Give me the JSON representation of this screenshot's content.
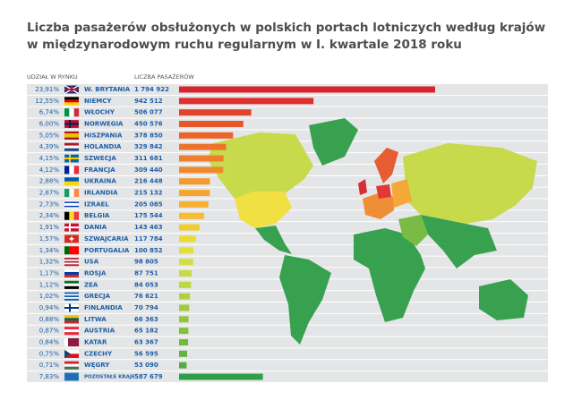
{
  "chart_data": {
    "type": "bar",
    "title": "Liczba pasażerów obsłużonych w polskich portach lotniczych według krajów",
    "subtitle": "w międzynarodowym ruchu regularnym w I. kwartale 2018 roku",
    "share_header": "UDZIAŁ W RYNKU",
    "value_header": "LICZBA PASAŻERÓW",
    "categories": [
      "W. BRYTANIA",
      "NIEMCY",
      "WŁOCHY",
      "NORWEGIA",
      "HISZPANIA",
      "HOLANDIA",
      "SZWECJA",
      "FRANCJA",
      "UKRAINA",
      "IRLANDIA",
      "IZRAEL",
      "BELGIA",
      "DANIA",
      "SZWAJCARIA",
      "PORTUGALIA",
      "USA",
      "ROSJA",
      "ZEA",
      "GRECJA",
      "FINLANDIA",
      "LITWA",
      "AUSTRIA",
      "KATAR",
      "CZECHY",
      "WĘGRY",
      "POZOSTAŁE KRAJE"
    ],
    "values": [
      1794922,
      942512,
      506077,
      450576,
      378850,
      329842,
      311681,
      309440,
      216448,
      215132,
      205085,
      175544,
      143463,
      117784,
      100852,
      98805,
      87751,
      84053,
      76621,
      70794,
      66363,
      65182,
      63367,
      56595,
      53090,
      587679
    ],
    "value_labels": [
      "1 794 922",
      "942 512",
      "506 077",
      "450 576",
      "378 850",
      "329 842",
      "311 681",
      "309 440",
      "216 448",
      "215 132",
      "205 085",
      "175 544",
      "143 463",
      "117 784",
      "100 852",
      "98 805",
      "87 751",
      "84 053",
      "76 621",
      "70 794",
      "66 363",
      "65 182",
      "63 367",
      "56 595",
      "53 090",
      "587 679"
    ],
    "shares": {
      "values": [
        23.91,
        12.55,
        6.74,
        6.0,
        5.05,
        4.39,
        4.15,
        4.12,
        2.88,
        2.87,
        2.73,
        2.34,
        1.91,
        1.57,
        1.34,
        1.32,
        1.17,
        1.12,
        1.02,
        0.94,
        0.88,
        0.87,
        0.84,
        0.75,
        0.71,
        7.83
      ],
      "value_labels": [
        "23,91%",
        "12,55%",
        "6,74%",
        "6,00%",
        "5,05%",
        "4,39%",
        "4,15%",
        "4,12%",
        "2,88%",
        "2,87%",
        "2,73%",
        "2,34%",
        "1,91%",
        "1,57%",
        "1,34%",
        "1,32%",
        "1,17%",
        "1,12%",
        "1,02%",
        "0,94%",
        "0,88%",
        "0,87%",
        "0,84%",
        "0,75%",
        "0,71%",
        "7,83%"
      ]
    },
    "colors": [
      "#d6262d",
      "#df302d",
      "#e2432c",
      "#e7552a",
      "#ea652b",
      "#ed742c",
      "#ee802c",
      "#ef8a2c",
      "#f39a2e",
      "#f5a52f",
      "#f7b030",
      "#f7bd31",
      "#f2cb30",
      "#eadb2c",
      "#dfe035",
      "#d4dd45",
      "#c9da44",
      "#bed641",
      "#b1d03f",
      "#a3ca3f",
      "#94c53d",
      "#84bf3c",
      "#74b93d",
      "#63b33f",
      "#52ad41",
      "#2e9e48"
    ]
  }
}
